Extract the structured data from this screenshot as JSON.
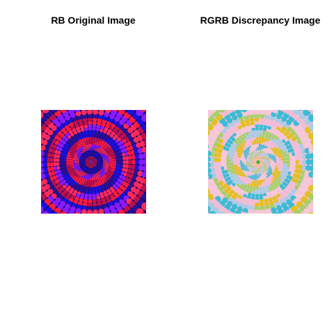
{
  "panels": [
    {
      "title": "RB Original Image",
      "palette": {
        "colors": [
          "#ff1a3c",
          "#1a10e0",
          "#8a1aff",
          "#c0104a",
          "#2a1098",
          "#ff2a5a"
        ],
        "background": "#1a0a6a",
        "center": "#6a1a8a"
      }
    },
    {
      "title": "RGRB Discrepancy Image",
      "palette": {
        "colors": [
          "#f2bcd6",
          "#a8cce6",
          "#3abcd6",
          "#e4c020",
          "#a6d06a",
          "#f6c8d8"
        ],
        "background": "#f0c0d4",
        "center": "#28b828"
      }
    }
  ]
}
